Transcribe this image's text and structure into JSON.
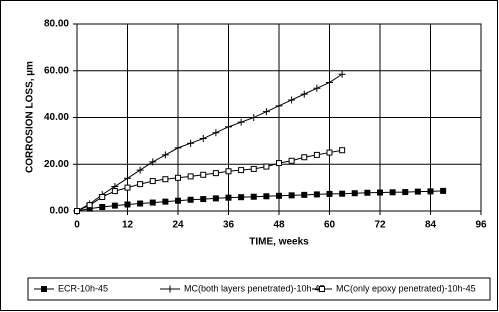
{
  "chart_data": {
    "type": "line",
    "x_label": "TIME, weeks",
    "y_label": "CORROSION LOSS, µm",
    "xlim": [
      0,
      96
    ],
    "xticks": [
      0,
      12,
      24,
      36,
      48,
      60,
      72,
      84,
      96
    ],
    "ylim": [
      0,
      80
    ],
    "yticks": [
      {
        "value": 0,
        "label": "0.00"
      },
      {
        "value": 20,
        "label": "20.00"
      },
      {
        "value": 40,
        "label": "40.00"
      },
      {
        "value": 60,
        "label": "60.00"
      },
      {
        "value": 80,
        "label": "80.00"
      }
    ],
    "grid": true,
    "legend": "bottom",
    "series": [
      {
        "name": "ECR-10h-45",
        "color": "#000000",
        "marker": "filled-square",
        "x": [
          0,
          3,
          6,
          9,
          12,
          15,
          18,
          21,
          24,
          27,
          30,
          33,
          36,
          39,
          42,
          45,
          48,
          51,
          54,
          57,
          60,
          63,
          66,
          69,
          72,
          75,
          78,
          81,
          84,
          87
        ],
        "values": [
          0,
          1,
          1.7,
          2.3,
          2.8,
          3.2,
          3.6,
          4.0,
          4.4,
          4.8,
          5.1,
          5.4,
          5.7,
          5.9,
          6.1,
          6.3,
          6.5,
          6.7,
          6.9,
          7.1,
          7.3,
          7.4,
          7.6,
          7.8,
          7.9,
          8.0,
          8.1,
          8.3,
          8.4,
          8.6
        ]
      },
      {
        "name": "MC(both layers penetrated)-10h-45",
        "color": "#000000",
        "marker": "plus",
        "x": [
          0,
          3,
          6,
          9,
          12,
          15,
          18,
          21,
          24,
          27,
          30,
          33,
          36,
          39,
          42,
          45,
          48,
          51,
          54,
          57,
          60,
          63
        ],
        "values": [
          0,
          3,
          7,
          10.5,
          14,
          17.5,
          21,
          24,
          27,
          29,
          31,
          33.5,
          36,
          38,
          40,
          42.5,
          45,
          47.5,
          50,
          52.5,
          55,
          58.5
        ]
      },
      {
        "name": "MC(only epoxy penetrated)-10h-45",
        "color": "#000000",
        "marker": "open-square",
        "x": [
          0,
          3,
          6,
          9,
          12,
          15,
          18,
          21,
          24,
          27,
          30,
          33,
          36,
          39,
          42,
          45,
          48,
          51,
          54,
          57,
          60,
          63
        ],
        "values": [
          0,
          2.5,
          6,
          8.5,
          10,
          11.5,
          12.8,
          13.6,
          14.2,
          14.8,
          15.5,
          16.2,
          17,
          17.5,
          18,
          19,
          20.5,
          21.5,
          23,
          24,
          25,
          26
        ]
      }
    ]
  }
}
